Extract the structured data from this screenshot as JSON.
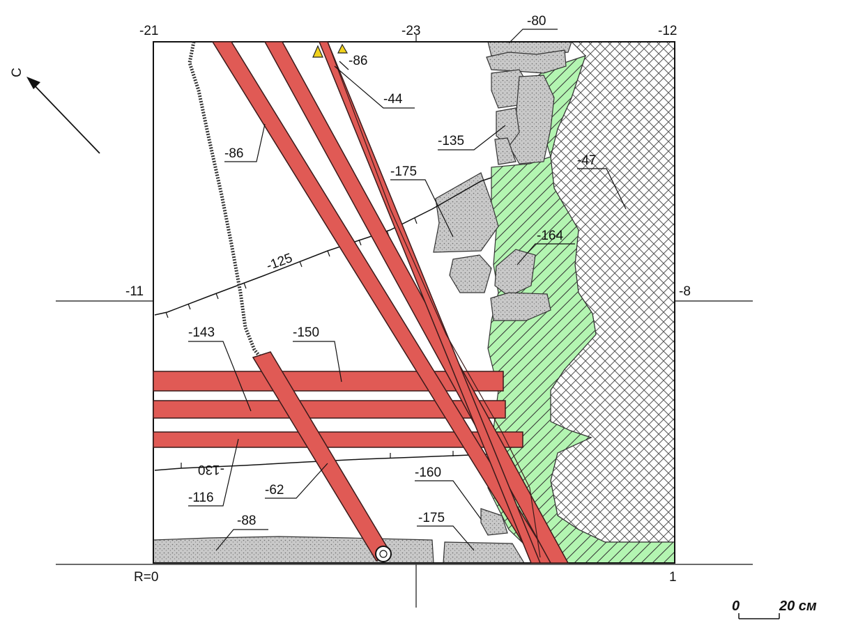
{
  "edge_labels": {
    "top_left": "-21",
    "top_mid": "-23",
    "top_right": "-12",
    "left_mid": "-11",
    "right_mid": "-8",
    "bottom_left": "R=0",
    "bottom_right": "1"
  },
  "north_label": "С",
  "scale_bar": {
    "start": "0",
    "end": "20 см"
  },
  "depth_labels": {
    "top_80": "-80",
    "top_86": "-86",
    "red_44": "-44",
    "stone_135": "-135",
    "red_86": "-86",
    "stone_175_top": "-175",
    "cross_47": "-47",
    "contour_125": "-125",
    "stone_164": "-164",
    "red_143": "-143",
    "red_150": "-150",
    "contour_130": "-130",
    "red_116": "-116",
    "red_62": "-62",
    "stone_160": "-160",
    "stone_175_bottom": "-175",
    "bottom_88": "-88"
  },
  "colors": {
    "red_fill": "#e05a55",
    "red_stroke": "#3a1a1a",
    "green_fill": "#b3f5b1",
    "stone_fill": "#c8c8c8",
    "crosshatch": "#555555",
    "marker": "#f1d21c"
  },
  "icons": {
    "marker": "warning-triangle-icon",
    "north": "north-arrow-icon",
    "well": "circle-marker-icon"
  }
}
